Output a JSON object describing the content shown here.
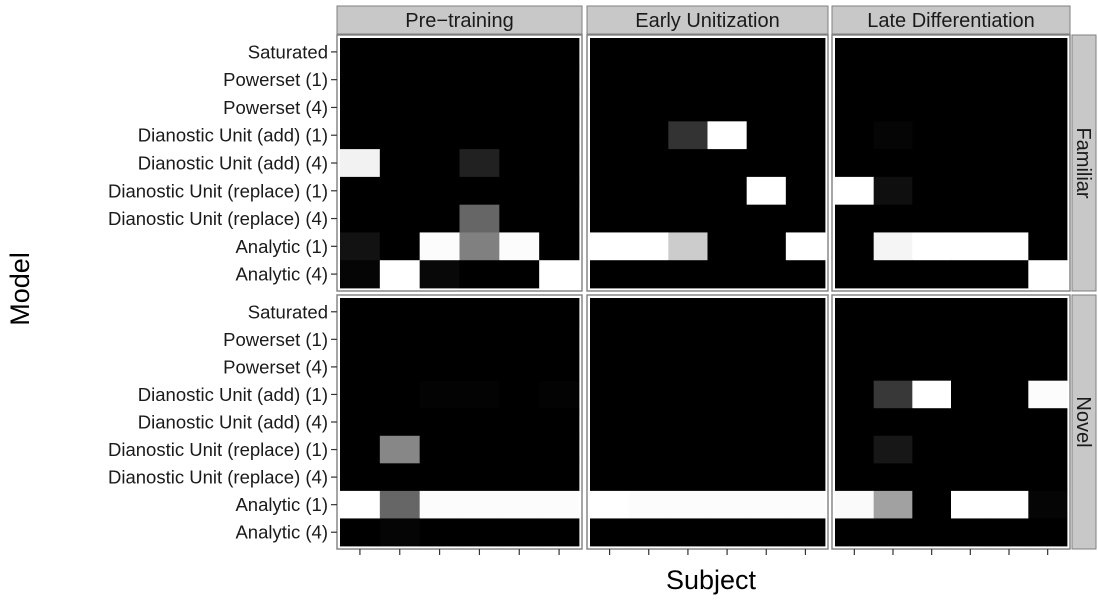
{
  "chart_data": {
    "type": "heatmap",
    "xlabel": "Subject",
    "ylabel": "Model",
    "x_tick_labels": false,
    "y_categories": [
      "Saturated",
      "Powerset (1)",
      "Powerset (4)",
      "Dianostic Unit (add) (1)",
      "Dianostic Unit (add) (4)",
      "Dianostic Unit (replace) (1)",
      "Dianostic Unit (replace) (4)",
      "Analytic (1)",
      "Analytic (4)"
    ],
    "columns": [
      "Pre−training",
      "Early Unitization",
      "Late Differentiation"
    ],
    "rows": [
      "Familiar",
      "Novel"
    ],
    "subjects_per_panel": 6,
    "value_range": [
      0,
      1
    ],
    "colors": {
      "low": "#000000",
      "high": "#ffffff",
      "strip_fill": "#c8c8c8",
      "frame": "#7f7f7f"
    },
    "panels": [
      {
        "column": "Pre−training",
        "row": "Familiar",
        "values": [
          [
            0,
            0,
            0,
            0,
            0,
            0
          ],
          [
            0,
            0,
            0,
            0,
            0,
            0
          ],
          [
            0,
            0,
            0,
            0,
            0,
            0
          ],
          [
            0,
            0,
            0,
            0,
            0,
            0
          ],
          [
            0.95,
            0,
            0,
            0.13,
            0,
            0
          ],
          [
            0,
            0,
            0,
            0,
            0,
            0
          ],
          [
            0,
            0,
            0,
            0.4,
            0,
            0
          ],
          [
            0.07,
            0,
            0.99,
            0.5,
            0.99,
            0
          ],
          [
            0.02,
            1,
            0.03,
            0,
            0,
            1
          ]
        ]
      },
      {
        "column": "Early Unitization",
        "row": "Familiar",
        "values": [
          [
            0,
            0,
            0,
            0,
            0,
            0
          ],
          [
            0,
            0,
            0,
            0,
            0,
            0
          ],
          [
            0,
            0,
            0,
            0,
            0,
            0
          ],
          [
            0,
            0,
            0.2,
            1,
            0,
            0
          ],
          [
            0,
            0,
            0,
            0,
            0,
            0
          ],
          [
            0,
            0,
            0,
            0,
            1,
            0
          ],
          [
            0,
            0,
            0,
            0,
            0,
            0
          ],
          [
            1,
            1,
            0.8,
            0,
            0,
            1
          ],
          [
            0,
            0,
            0,
            0,
            0,
            0
          ]
        ]
      },
      {
        "column": "Late Differentiation",
        "row": "Familiar",
        "values": [
          [
            0,
            0,
            0,
            0,
            0,
            0
          ],
          [
            0,
            0,
            0,
            0,
            0,
            0
          ],
          [
            0,
            0,
            0,
            0,
            0,
            0
          ],
          [
            0,
            0.02,
            0,
            0,
            0,
            0
          ],
          [
            0,
            0,
            0,
            0,
            0,
            0
          ],
          [
            1,
            0.06,
            0,
            0,
            0,
            0
          ],
          [
            0,
            0,
            0,
            0,
            0,
            0
          ],
          [
            0,
            0.96,
            1,
            1,
            1,
            0
          ],
          [
            0,
            0,
            0,
            0,
            0,
            1
          ]
        ]
      },
      {
        "column": "Pre−training",
        "row": "Novel",
        "values": [
          [
            0,
            0,
            0,
            0,
            0,
            0
          ],
          [
            0,
            0,
            0,
            0,
            0,
            0
          ],
          [
            0,
            0,
            0,
            0,
            0,
            0
          ],
          [
            0,
            0,
            0.01,
            0.01,
            0,
            0.01
          ],
          [
            0,
            0,
            0,
            0,
            0,
            0
          ],
          [
            0,
            0.53,
            0,
            0,
            0,
            0
          ],
          [
            0,
            0,
            0,
            0,
            0,
            0
          ],
          [
            1,
            0.4,
            0.99,
            0.99,
            0.99,
            0.99
          ],
          [
            0,
            0.02,
            0,
            0,
            0,
            0
          ]
        ]
      },
      {
        "column": "Early Unitization",
        "row": "Novel",
        "values": [
          [
            0,
            0,
            0,
            0,
            0,
            0
          ],
          [
            0,
            0,
            0,
            0,
            0,
            0
          ],
          [
            0,
            0,
            0,
            0,
            0,
            0
          ],
          [
            0,
            0,
            0,
            0,
            0,
            0
          ],
          [
            0,
            0,
            0,
            0,
            0,
            0
          ],
          [
            0,
            0,
            0,
            0,
            0,
            0
          ],
          [
            0,
            0,
            0,
            0,
            0,
            0
          ],
          [
            1,
            0.99,
            0.99,
            0.99,
            0.99,
            0.99
          ],
          [
            0,
            0,
            0,
            0,
            0,
            0
          ]
        ]
      },
      {
        "column": "Late Differentiation",
        "row": "Novel",
        "values": [
          [
            0,
            0,
            0,
            0,
            0,
            0
          ],
          [
            0,
            0,
            0,
            0,
            0,
            0
          ],
          [
            0,
            0,
            0,
            0,
            0,
            0
          ],
          [
            0,
            0.22,
            1,
            0,
            0,
            0.99
          ],
          [
            0,
            0,
            0,
            0,
            0,
            0
          ],
          [
            0,
            0.09,
            0,
            0,
            0,
            0
          ],
          [
            0,
            0,
            0,
            0,
            0,
            0
          ],
          [
            0.98,
            0.63,
            0,
            1,
            1,
            0.02
          ],
          [
            0,
            0,
            0,
            0,
            0,
            0
          ]
        ]
      }
    ]
  }
}
